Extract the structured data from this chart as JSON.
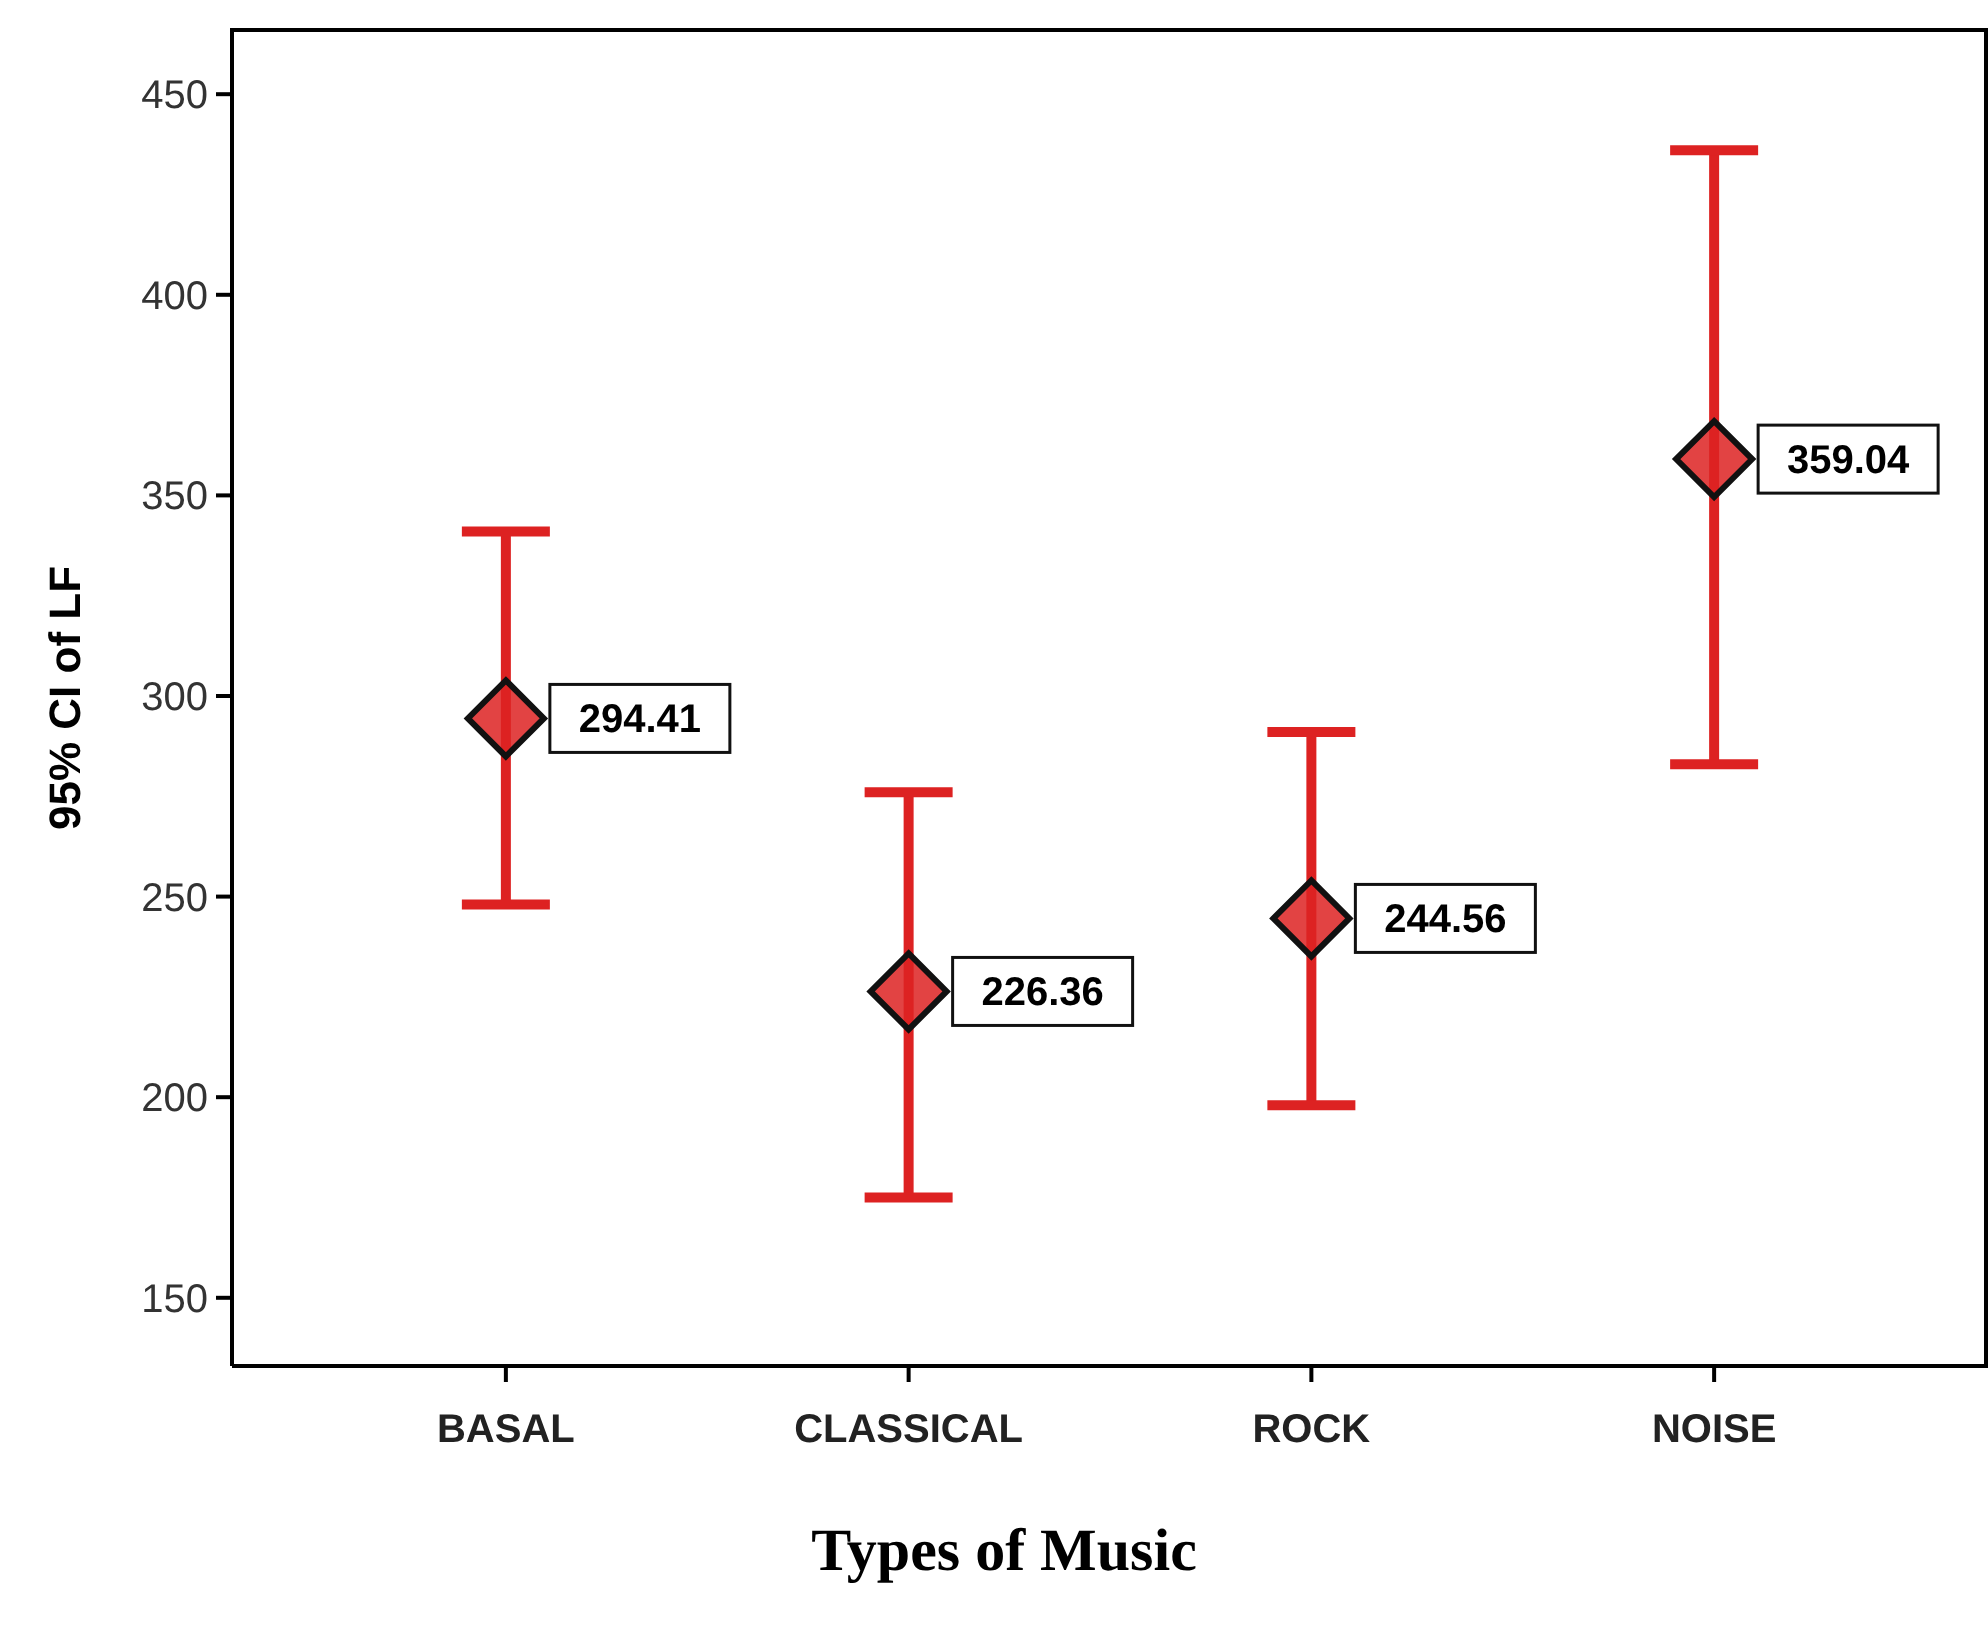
{
  "chart_data": {
    "type": "scatter",
    "xlabel": "Types of Music",
    "ylabel": "95% CI of LF",
    "categories": [
      "BASAL",
      "CLASSICAL",
      "ROCK",
      "NOISE"
    ],
    "values": [
      294.41,
      226.36,
      244.56,
      359.04
    ],
    "errors": [
      [
        248,
        341
      ],
      [
        175,
        276
      ],
      [
        198,
        291
      ],
      [
        283,
        436
      ]
    ],
    "color": "#dd2222",
    "data_labels": true,
    "marker": "diamond",
    "grid": false,
    "ylim": [
      133,
      466
    ],
    "yticks": [
      150,
      200,
      250,
      300,
      350,
      400,
      450
    ]
  }
}
